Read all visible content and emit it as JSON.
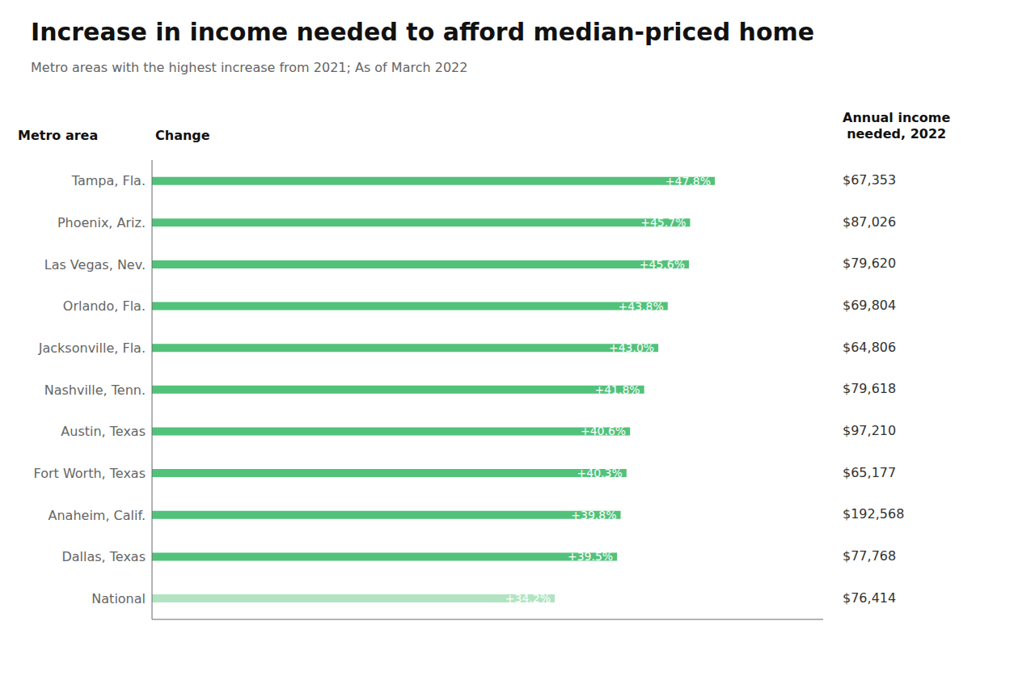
{
  "chart_data": {
    "type": "bar",
    "orientation": "horizontal",
    "title": "Increase in income needed to afford median-priced home",
    "subtitle": "Metro areas with the highest increase from 2021; As of March 2022",
    "category_header": "Metro area",
    "value_header": "Change",
    "categories": [
      "Tampa, Fla.",
      "Phoenix, Ariz.",
      "Las Vegas, Nev.",
      "Orlando, Fla.",
      "Jacksonville, Fla.",
      "Nashville, Tenn.",
      "Austin, Texas",
      "Fort Worth, Texas",
      "Anaheim, Calif.",
      "Dallas, Texas",
      "National"
    ],
    "values": [
      47.8,
      45.7,
      45.6,
      43.8,
      43.0,
      41.8,
      40.6,
      40.3,
      39.8,
      39.5,
      34.2
    ],
    "value_labels": [
      "+47.8%",
      "+45.7%",
      "+45.6%",
      "+43.8%",
      "+43.0%",
      "+41.8%",
      "+40.6%",
      "+40.3%",
      "+39.8%",
      "+39.5%",
      "+34.2%"
    ],
    "data_labels": true,
    "colors": [
      "#52C27A",
      "#52C27A",
      "#52C27A",
      "#52C27A",
      "#52C27A",
      "#52C27A",
      "#52C27A",
      "#52C27A",
      "#52C27A",
      "#52C27A",
      "#B2E4C2"
    ],
    "income": {
      "header": "Annual income\nneeded, 2022",
      "values": [
        67353,
        87026,
        79620,
        69804,
        64806,
        79618,
        97210,
        65177,
        192568,
        77768,
        76414
      ],
      "value_labels": [
        "$67,353",
        "$87,026",
        "$79,620",
        "$69,804",
        "$64,806",
        "$79,618",
        "$97,210",
        "$65,177",
        "$192,568",
        "$77,768",
        "$76,414"
      ]
    },
    "xlim": [
      0,
      57
    ],
    "tick_labels": "y",
    "grid": false
  }
}
